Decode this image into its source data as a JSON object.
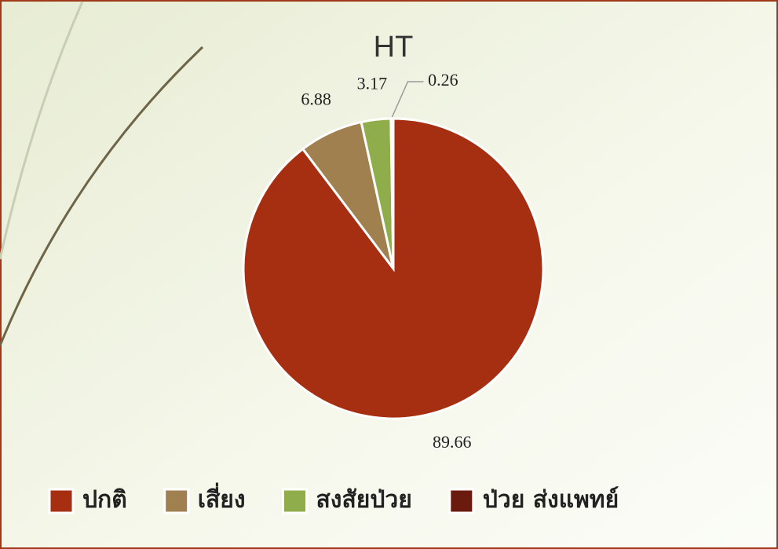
{
  "chart_data": {
    "type": "pie",
    "title": "HT",
    "categories": [
      "ปกติ",
      "เสี่ยง",
      "สงสัยป่วย",
      "ป่วย ส่งแพทย์"
    ],
    "values": [
      89.66,
      6.88,
      3.17,
      0.26
    ],
    "colors": [
      "#a52f10",
      "#a0804f",
      "#8fad4a",
      "#6b1a0e"
    ],
    "legend": "bottom"
  }
}
